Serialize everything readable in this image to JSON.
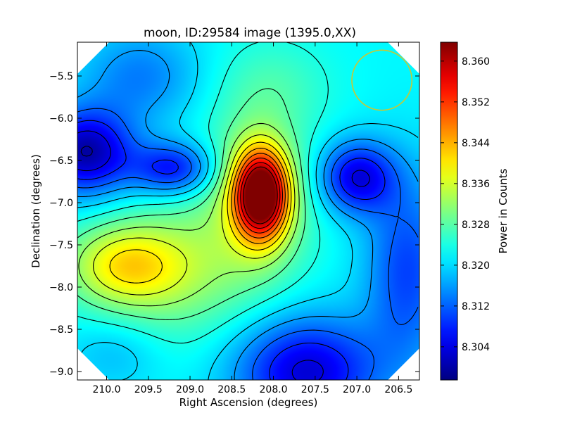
{
  "chart_data": {
    "type": "heatmap",
    "title": "moon, ID:29584 image (1395.0,XX)",
    "xlabel": "Right Ascension (degrees)",
    "ylabel": "Declination (degrees)",
    "colorbar_label": "Power in Counts",
    "colormap": "jet",
    "xlim": [
      210.35,
      206.25
    ],
    "ylim": [
      -9.1,
      -5.1
    ],
    "clim": [
      8.2975,
      8.3637
    ],
    "x_ticks": [
      {
        "value": 210.0,
        "label": "210.0"
      },
      {
        "value": 209.5,
        "label": "209.5"
      },
      {
        "value": 209.0,
        "label": "209.0"
      },
      {
        "value": 208.5,
        "label": "208.5"
      },
      {
        "value": 208.0,
        "label": "208.0"
      },
      {
        "value": 207.5,
        "label": "207.5"
      },
      {
        "value": 207.0,
        "label": "207.0"
      },
      {
        "value": 206.5,
        "label": "206.5"
      }
    ],
    "y_ticks": [
      {
        "value": -5.5,
        "label": "−5.5"
      },
      {
        "value": -6.0,
        "label": "−6.0"
      },
      {
        "value": -6.5,
        "label": "−6.5"
      },
      {
        "value": -7.0,
        "label": "−7.0"
      },
      {
        "value": -7.5,
        "label": "−7.5"
      },
      {
        "value": -8.0,
        "label": "−8.0"
      },
      {
        "value": -8.5,
        "label": "−8.5"
      },
      {
        "value": -9.0,
        "label": "−9.0"
      }
    ],
    "colorbar_ticks": [
      {
        "value": 8.304,
        "label": "8.304"
      },
      {
        "value": 8.312,
        "label": "8.312"
      },
      {
        "value": 8.32,
        "label": "8.320"
      },
      {
        "value": 8.328,
        "label": "8.328"
      },
      {
        "value": 8.336,
        "label": "8.336"
      },
      {
        "value": 8.344,
        "label": "8.344"
      },
      {
        "value": 8.352,
        "label": "8.352"
      },
      {
        "value": 8.36,
        "label": "8.360"
      }
    ],
    "field": {
      "base": 8.322,
      "features": [
        {
          "x": 208.15,
          "y": -6.9,
          "amp": 0.041,
          "sx": 0.22,
          "sy": 0.36
        },
        {
          "x": 208.2,
          "y": -6.95,
          "amp": 0.012,
          "sx": 0.45,
          "sy": 0.7
        },
        {
          "x": 209.8,
          "y": -7.75,
          "amp": 0.016,
          "sx": 0.5,
          "sy": 0.35
        },
        {
          "x": 209.1,
          "y": -7.8,
          "amp": 0.008,
          "sx": 0.6,
          "sy": 0.6
        },
        {
          "x": 210.25,
          "y": -6.4,
          "amp": -0.022,
          "sx": 0.4,
          "sy": 0.35
        },
        {
          "x": 209.2,
          "y": -6.6,
          "amp": -0.016,
          "sx": 0.35,
          "sy": 0.22
        },
        {
          "x": 207.0,
          "y": -6.7,
          "amp": -0.018,
          "sx": 0.32,
          "sy": 0.3
        },
        {
          "x": 207.6,
          "y": -9.0,
          "amp": -0.019,
          "sx": 0.6,
          "sy": 0.45
        },
        {
          "x": 206.4,
          "y": -7.8,
          "amp": -0.012,
          "sx": 0.35,
          "sy": 0.8
        },
        {
          "x": 209.6,
          "y": -5.5,
          "amp": -0.008,
          "sx": 0.5,
          "sy": 0.4
        },
        {
          "x": 208.0,
          "y": -5.6,
          "amp": 0.004,
          "sx": 0.5,
          "sy": 0.4
        },
        {
          "x": 209.9,
          "y": -8.8,
          "amp": -0.004,
          "sx": 0.4,
          "sy": 0.3
        }
      ]
    },
    "contour_levels": [
      8.3,
      8.304,
      8.308,
      8.312,
      8.316,
      8.32,
      8.324,
      8.328,
      8.332,
      8.336,
      8.34,
      8.344,
      8.348,
      8.352,
      8.356,
      8.36
    ],
    "annotations": [
      {
        "type": "circle",
        "x": 206.7,
        "y": -5.55,
        "radius_deg": 0.36,
        "color": "#c8c832"
      }
    ]
  }
}
